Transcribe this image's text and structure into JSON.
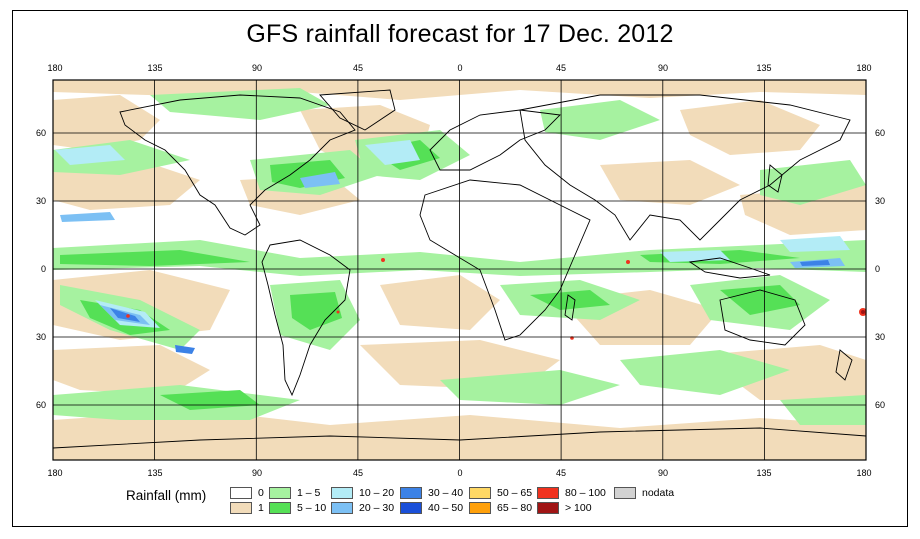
{
  "title": "GFS rainfall forecast for 17 Dec. 2012",
  "lon_labels": [
    "180",
    "135",
    "90",
    "45",
    "0",
    "45",
    "90",
    "135",
    "180"
  ],
  "lat_labels": [
    "60",
    "30",
    "0",
    "30",
    "60"
  ],
  "legend": {
    "title": "Rainfall (mm)",
    "items": [
      {
        "label": "0",
        "color": "#ffffff"
      },
      {
        "label": "1",
        "color": "#f2dcba"
      },
      {
        "label": "1 – 5",
        "color": "#a6f2a0"
      },
      {
        "label": "5 – 10",
        "color": "#55e056"
      },
      {
        "label": "10 – 20",
        "color": "#b3ecf6"
      },
      {
        "label": "20 – 30",
        "color": "#7cc0f4"
      },
      {
        "label": "30 – 40",
        "color": "#3c82e6"
      },
      {
        "label": "40 – 50",
        "color": "#1a4fd8"
      },
      {
        "label": "50 – 65",
        "color": "#ffd864"
      },
      {
        "label": "65 – 80",
        "color": "#ffa00a"
      },
      {
        "label": "80 – 100",
        "color": "#f0321e"
      },
      {
        "label": "> 100",
        "color": "#a01414"
      },
      {
        "label": "nodata",
        "color": "#d2d2d2"
      }
    ]
  }
}
